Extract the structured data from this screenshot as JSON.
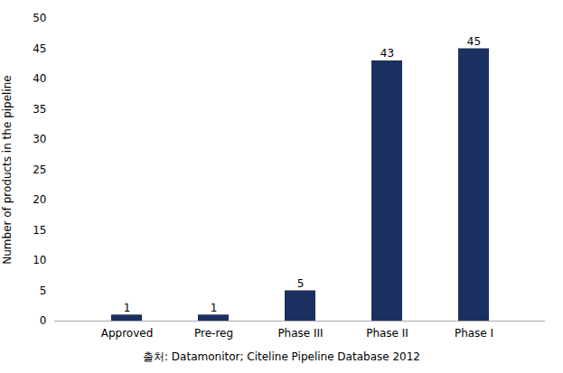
{
  "chart_data": {
    "type": "bar",
    "categories": [
      "Approved",
      "Pre-reg",
      "Phase III",
      "Phase II",
      "Phase I"
    ],
    "values": [
      1,
      1,
      5,
      43,
      45
    ],
    "color": "#1a3060",
    "ylabel": "Number of products in the pipeline",
    "caption": "출처: Datamonitor; Citeline Pipeline Database 2012",
    "ylim": [
      0,
      50
    ],
    "yticks": [
      0,
      5,
      10,
      15,
      20,
      25,
      30,
      35,
      40,
      45,
      50
    ],
    "grid": false,
    "data_labels": true
  }
}
